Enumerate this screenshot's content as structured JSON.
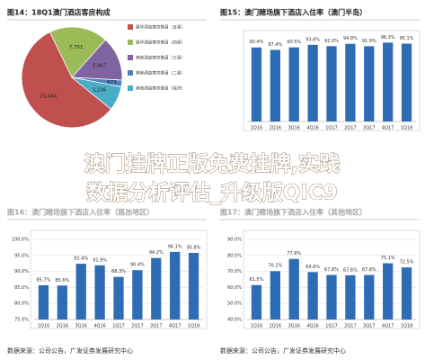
{
  "chart_data": [
    {
      "type": "pie",
      "title": "图14：18Q1澳门酒店客房构成",
      "categories": [
        "豪华酒店客房数目（五星）",
        "豪华酒店客房数目（四星）",
        "其他酒店客房数目（三星）",
        "其他酒店客房数目（二星）",
        "其他酒店客房数目（经济）"
      ],
      "values": [
        23464,
        7751,
        5867,
        873,
        3236
      ],
      "value_labels": [
        "23,464",
        "7,751",
        "5,867",
        "873",
        "3,236"
      ],
      "colors": [
        "#c0504d",
        "#9bbb59",
        "#8064a2",
        "#4f81bd",
        "#4bacc6"
      ]
    },
    {
      "type": "bar",
      "title": "图15：澳门赌场旗下酒店入住率（澳门半岛）",
      "categories": [
        "1Q16",
        "2Q16",
        "3Q16",
        "4Q16",
        "1Q17",
        "2Q17",
        "3Q17",
        "4Q17",
        "1Q18"
      ],
      "values": [
        90.4,
        87.4,
        90.5,
        93.6,
        92.0,
        94.8,
        91.9,
        96.3,
        95.1
      ],
      "value_labels": [
        "90.4%",
        "87.4%",
        "90.5%",
        "93.6%",
        "92.0%",
        "94.8%",
        "91.9%",
        "96.3%",
        "95.1%"
      ],
      "color": "#2e6cb5",
      "ylim": [
        0,
        100
      ],
      "yticks": [],
      "grid": false
    },
    {
      "type": "bar",
      "title": "图16：澳门赌场旗下酒店入住率（路氹地区）",
      "categories": [
        "1Q16",
        "2Q16",
        "3Q16",
        "4Q16",
        "1Q17",
        "2Q17",
        "3Q17",
        "4Q17",
        "1Q18"
      ],
      "values": [
        85.7,
        85.6,
        92.4,
        91.9,
        88.3,
        90.4,
        94.2,
        96.1,
        95.8
      ],
      "value_labels": [
        "85.7%",
        "85.6%",
        "92.4%",
        "91.9%",
        "88.3%",
        "90.4%",
        "94.2%",
        "96.1%",
        "95.8%"
      ],
      "color": "#2e6cb5",
      "ylim": [
        75,
        100
      ],
      "yticks": [
        {
          "value": 75,
          "label": "75.0%"
        },
        {
          "value": 80,
          "label": "80.0%"
        },
        {
          "value": 85,
          "label": "85.0%"
        },
        {
          "value": 90,
          "label": "90.0%"
        },
        {
          "value": 95,
          "label": "95.0%"
        },
        {
          "value": 100,
          "label": "100.0%"
        }
      ],
      "grid": true,
      "source": "数据来源：公司公告，广发证券发展研究中心"
    },
    {
      "type": "bar",
      "title": "图17：澳门赌场旗下酒店入住率（其他地区）",
      "categories": [
        "1Q16",
        "2Q16",
        "3Q16",
        "4Q16",
        "1Q17",
        "2Q17",
        "3Q17",
        "4Q17",
        "1Q18"
      ],
      "values": [
        61.5,
        70.2,
        77.8,
        69.6,
        67.8,
        67.6,
        67.8,
        75.1,
        72.5
      ],
      "value_labels": [
        "61.5%",
        "70.2%",
        "77.8%",
        "69.6%",
        "67.8%",
        "67.6%",
        "67.8%",
        "75.1%",
        "72.5%"
      ],
      "color": "#2e6cb5",
      "ylim": [
        40,
        90
      ],
      "yticks": [
        {
          "value": 40,
          "label": "40.0%"
        },
        {
          "value": 50,
          "label": "50.0%"
        },
        {
          "value": 60,
          "label": "60.0%"
        },
        {
          "value": 70,
          "label": "70.0%"
        },
        {
          "value": 80,
          "label": "80.0%"
        },
        {
          "value": 90,
          "label": "90.0%"
        }
      ],
      "grid": true,
      "source": "数据来源：公司公告，广发证券发展研究中心"
    }
  ],
  "overlay": {
    "lines": [
      "澳门挂牌正版免费挂牌,实践",
      "数据分析评估_升级版QIC9"
    ]
  }
}
